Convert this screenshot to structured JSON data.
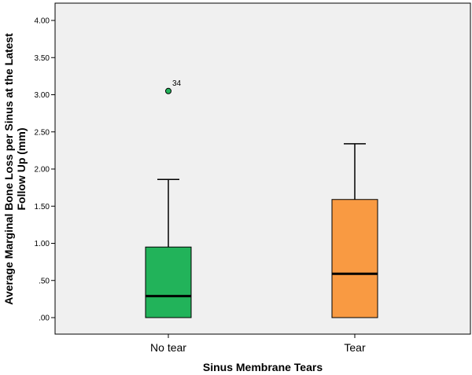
{
  "chart_data": {
    "type": "box",
    "categories": [
      "No tear",
      "Tear"
    ],
    "boxes": [
      {
        "category": "No tear",
        "min": 0.0,
        "q1": 0.0,
        "median": 0.29,
        "q3": 0.95,
        "max": 1.86,
        "color": "#22b35a",
        "outliers": [
          {
            "value": 3.05,
            "label": "34"
          }
        ]
      },
      {
        "category": "Tear",
        "min": 0.0,
        "q1": 0.0,
        "median": 0.59,
        "q3": 1.59,
        "max": 2.34,
        "color": "#f99a42",
        "outliers": []
      }
    ],
    "ylim": [
      -0.22,
      4.2
    ],
    "yticks": [
      {
        "value": 0.0,
        "label": ".00"
      },
      {
        "value": 0.5,
        "label": ".50"
      },
      {
        "value": 1.0,
        "label": "1.00"
      },
      {
        "value": 1.5,
        "label": "1.50"
      },
      {
        "value": 2.0,
        "label": "2.00"
      },
      {
        "value": 2.5,
        "label": "2.50"
      },
      {
        "value": 3.0,
        "label": "3.00"
      },
      {
        "value": 3.5,
        "label": "3.50"
      },
      {
        "value": 4.0,
        "label": "4.00"
      }
    ],
    "xlabel": "Sinus Membrane Tears",
    "ylabel_line1": "Average Marginal Bone Loss per Sinus at the Latest",
    "ylabel_line2": "Follow Up (mm)",
    "plot_background": "#f0f0f0",
    "grid": false,
    "legend": "none"
  }
}
